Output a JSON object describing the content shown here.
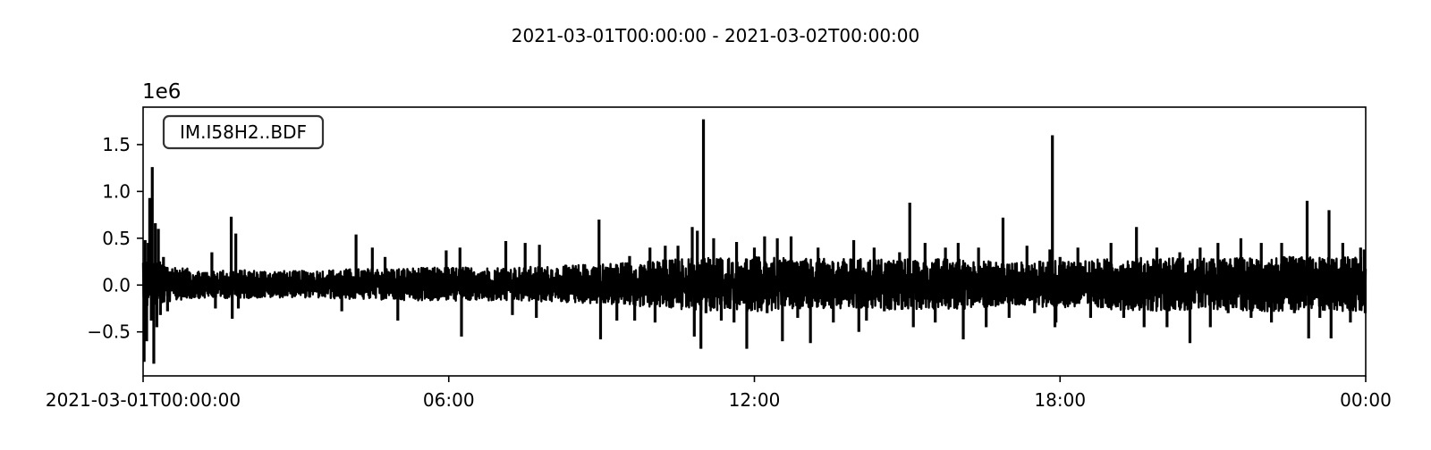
{
  "chart_data": {
    "type": "line",
    "title": "2021-03-01T00:00:00  -  2021-03-02T00:00:00",
    "xlabel": "",
    "ylabel": "",
    "y_offset_text": "1e6",
    "legend": {
      "label": "IM.I58H2..BDF",
      "placement": "top-left"
    },
    "x_unit": "hours since 2021-03-01T00:00:00",
    "xlim": [
      0,
      24
    ],
    "ylim": [
      -0.97,
      1.9
    ],
    "x_ticks": [
      {
        "value": 0,
        "label": "2021-03-01T00:00:00"
      },
      {
        "value": 6,
        "label": "06:00"
      },
      {
        "value": 12,
        "label": "12:00"
      },
      {
        "value": 18,
        "label": "18:00"
      },
      {
        "value": 24,
        "label": "00:00"
      }
    ],
    "y_ticks": [
      {
        "value": -0.5,
        "label": "−0.5"
      },
      {
        "value": 0.0,
        "label": "0.0"
      },
      {
        "value": 0.5,
        "label": "0.5"
      },
      {
        "value": 1.0,
        "label": "1.0"
      },
      {
        "value": 1.5,
        "label": "1.5"
      }
    ],
    "grid": false,
    "line_color": "#000000",
    "series": [
      {
        "envelope": {
          "x": [
            0,
            0.5,
            1,
            2,
            3,
            4,
            5,
            6,
            7,
            8,
            9,
            10,
            11,
            12,
            13,
            14,
            15,
            16,
            17,
            18,
            19,
            20,
            21,
            22,
            23,
            24
          ],
          "upper": [
            0.3,
            0.22,
            0.16,
            0.16,
            0.15,
            0.17,
            0.18,
            0.19,
            0.19,
            0.2,
            0.23,
            0.26,
            0.3,
            0.3,
            0.28,
            0.28,
            0.28,
            0.28,
            0.24,
            0.26,
            0.28,
            0.3,
            0.28,
            0.3,
            0.3,
            0.3
          ],
          "lower": [
            -0.25,
            -0.18,
            -0.14,
            -0.14,
            -0.13,
            -0.15,
            -0.16,
            -0.17,
            -0.17,
            -0.18,
            -0.2,
            -0.24,
            -0.28,
            -0.28,
            -0.26,
            -0.26,
            -0.26,
            -0.26,
            -0.22,
            -0.24,
            -0.26,
            -0.28,
            -0.26,
            -0.28,
            -0.28,
            -0.28
          ]
        },
        "spikes": [
          {
            "t": 0.02,
            "v": -0.82
          },
          {
            "t": 0.04,
            "v": 0.48
          },
          {
            "t": 0.07,
            "v": -0.6
          },
          {
            "t": 0.1,
            "v": 0.45
          },
          {
            "t": 0.13,
            "v": 0.93
          },
          {
            "t": 0.16,
            "v": -0.38
          },
          {
            "t": 0.18,
            "v": 1.26
          },
          {
            "t": 0.21,
            "v": -0.84
          },
          {
            "t": 0.24,
            "v": 0.66
          },
          {
            "t": 0.27,
            "v": -0.45
          },
          {
            "t": 0.3,
            "v": 0.6
          },
          {
            "t": 0.34,
            "v": -0.32
          },
          {
            "t": 0.4,
            "v": 0.3
          },
          {
            "t": 0.48,
            "v": -0.28
          },
          {
            "t": 1.35,
            "v": 0.35
          },
          {
            "t": 1.42,
            "v": -0.25
          },
          {
            "t": 1.73,
            "v": 0.73
          },
          {
            "t": 1.75,
            "v": -0.36
          },
          {
            "t": 1.82,
            "v": 0.55
          },
          {
            "t": 1.87,
            "v": -0.25
          },
          {
            "t": 3.9,
            "v": -0.28
          },
          {
            "t": 4.18,
            "v": 0.54
          },
          {
            "t": 4.5,
            "v": 0.4
          },
          {
            "t": 4.75,
            "v": 0.3
          },
          {
            "t": 5.0,
            "v": -0.38
          },
          {
            "t": 5.95,
            "v": 0.37
          },
          {
            "t": 6.22,
            "v": 0.4
          },
          {
            "t": 6.25,
            "v": -0.55
          },
          {
            "t": 7.12,
            "v": 0.47
          },
          {
            "t": 7.25,
            "v": -0.32
          },
          {
            "t": 7.5,
            "v": 0.45
          },
          {
            "t": 7.72,
            "v": -0.35
          },
          {
            "t": 7.78,
            "v": 0.43
          },
          {
            "t": 8.95,
            "v": 0.7
          },
          {
            "t": 8.98,
            "v": -0.58
          },
          {
            "t": 9.3,
            "v": -0.38
          },
          {
            "t": 9.55,
            "v": 0.31
          },
          {
            "t": 9.65,
            "v": -0.38
          },
          {
            "t": 9.95,
            "v": 0.4
          },
          {
            "t": 10.05,
            "v": -0.4
          },
          {
            "t": 10.25,
            "v": 0.42
          },
          {
            "t": 10.5,
            "v": 0.42
          },
          {
            "t": 10.78,
            "v": 0.62
          },
          {
            "t": 10.82,
            "v": -0.55
          },
          {
            "t": 10.88,
            "v": 0.58
          },
          {
            "t": 10.95,
            "v": -0.68
          },
          {
            "t": 11.0,
            "v": 1.77
          },
          {
            "t": 11.05,
            "v": -0.3
          },
          {
            "t": 11.2,
            "v": 0.5
          },
          {
            "t": 11.35,
            "v": -0.38
          },
          {
            "t": 11.6,
            "v": -0.4
          },
          {
            "t": 11.65,
            "v": 0.46
          },
          {
            "t": 11.85,
            "v": -0.68
          },
          {
            "t": 12.0,
            "v": 0.4
          },
          {
            "t": 12.2,
            "v": 0.52
          },
          {
            "t": 12.25,
            "v": -0.3
          },
          {
            "t": 12.45,
            "v": 0.5
          },
          {
            "t": 12.55,
            "v": -0.6
          },
          {
            "t": 12.72,
            "v": 0.52
          },
          {
            "t": 12.85,
            "v": -0.35
          },
          {
            "t": 13.1,
            "v": -0.62
          },
          {
            "t": 13.25,
            "v": 0.4
          },
          {
            "t": 13.55,
            "v": -0.4
          },
          {
            "t": 13.95,
            "v": 0.48
          },
          {
            "t": 14.05,
            "v": -0.5
          },
          {
            "t": 14.2,
            "v": -0.38
          },
          {
            "t": 14.35,
            "v": 0.4
          },
          {
            "t": 14.55,
            "v": -0.28
          },
          {
            "t": 14.85,
            "v": 0.35
          },
          {
            "t": 15.05,
            "v": 0.88
          },
          {
            "t": 15.12,
            "v": -0.45
          },
          {
            "t": 15.35,
            "v": 0.45
          },
          {
            "t": 15.55,
            "v": -0.4
          },
          {
            "t": 15.75,
            "v": 0.4
          },
          {
            "t": 16.0,
            "v": 0.45
          },
          {
            "t": 16.1,
            "v": -0.58
          },
          {
            "t": 16.4,
            "v": 0.4
          },
          {
            "t": 16.55,
            "v": -0.45
          },
          {
            "t": 16.88,
            "v": 0.72
          },
          {
            "t": 17.0,
            "v": -0.35
          },
          {
            "t": 17.35,
            "v": 0.42
          },
          {
            "t": 17.5,
            "v": -0.3
          },
          {
            "t": 17.8,
            "v": 0.38
          },
          {
            "t": 17.92,
            "v": -0.4
          },
          {
            "t": 18.0,
            "v": 0.3
          },
          {
            "t": 17.85,
            "v": 1.6
          },
          {
            "t": 17.9,
            "v": -0.45
          },
          {
            "t": 18.35,
            "v": 0.4
          },
          {
            "t": 18.6,
            "v": -0.35
          },
          {
            "t": 19.0,
            "v": 0.45
          },
          {
            "t": 19.25,
            "v": -0.35
          },
          {
            "t": 19.5,
            "v": 0.62
          },
          {
            "t": 19.65,
            "v": -0.45
          },
          {
            "t": 19.9,
            "v": 0.4
          },
          {
            "t": 20.1,
            "v": -0.45
          },
          {
            "t": 20.35,
            "v": 0.35
          },
          {
            "t": 20.55,
            "v": -0.62
          },
          {
            "t": 20.75,
            "v": 0.4
          },
          {
            "t": 20.95,
            "v": -0.45
          },
          {
            "t": 21.1,
            "v": 0.45
          },
          {
            "t": 21.3,
            "v": -0.3
          },
          {
            "t": 21.55,
            "v": 0.5
          },
          {
            "t": 21.75,
            "v": -0.35
          },
          {
            "t": 21.95,
            "v": 0.45
          },
          {
            "t": 22.15,
            "v": -0.4
          },
          {
            "t": 22.35,
            "v": 0.45
          },
          {
            "t": 22.6,
            "v": -0.3
          },
          {
            "t": 22.85,
            "v": 0.9
          },
          {
            "t": 22.88,
            "v": -0.57
          },
          {
            "t": 23.1,
            "v": -0.35
          },
          {
            "t": 23.28,
            "v": 0.8
          },
          {
            "t": 23.32,
            "v": -0.57
          },
          {
            "t": 23.55,
            "v": 0.45
          },
          {
            "t": 23.7,
            "v": -0.4
          },
          {
            "t": 23.9,
            "v": 0.4
          },
          {
            "t": 23.97,
            "v": 0.38
          },
          {
            "t": 23.99,
            "v": -0.3
          }
        ]
      }
    ]
  }
}
